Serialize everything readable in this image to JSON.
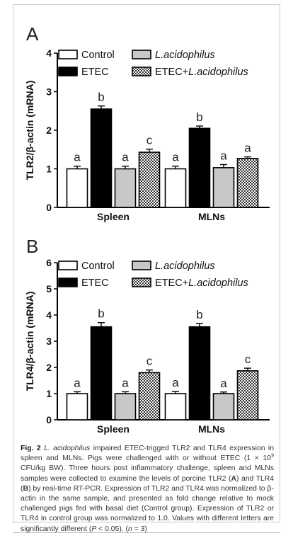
{
  "figure": {
    "caption": {
      "fig_label": "Fig. 2",
      "title_ital": "L. acidophilus",
      "title_rest": "impaired ETEC-trigged TLR2 and TLR4 expression in spleen and MLNs. Pigs were challenged with or without ETEC (1 × 10",
      "exp": "9",
      "p1": "CFU/kg BW). Three hours post inflammatory challenge, spleen and MLNs samples were collected to examine the levels of porcine TLR2 (",
      "a": "A",
      "p2": ") and TLR4 (",
      "b": "B",
      "p3": ") by real-time RT-PCR. Expression of TLR2 and TLR4 was normalized to β-actin in the same sample, and presented as fold change relative to mock challenged pigs fed with basal diet (Control group). Expression of TLR2 or TLR4 in control group was normalized to 1.0. Values with different letters are significantly different (",
      "p_ital": "P",
      "p4": " < 0.05). (",
      "n_ital": "n",
      "p5": " = 3)"
    }
  },
  "chart_data": [
    {
      "type": "bar",
      "panel_label": "A",
      "ylabel": "TLR2/β-actin (mRNA)",
      "ylim": [
        0,
        4
      ],
      "yticks": [
        "0",
        "1",
        "2",
        "3",
        "4"
      ],
      "categories": [
        "Spleen",
        "MLNs"
      ],
      "legend": {
        "placement": "top-left",
        "entries": [
          {
            "text": "Control",
            "ital": "",
            "pattern": "control"
          },
          {
            "text": "",
            "ital": "L.acidophilus",
            "pattern": "lacto"
          },
          {
            "text": "ETEC",
            "ital": "",
            "pattern": "etec"
          },
          {
            "text": "ETEC+",
            "ital": "L.acidophilus",
            "pattern": "combo"
          }
        ]
      },
      "series": [
        {
          "pattern": "control",
          "values": [
            1.0,
            1.0
          ],
          "errors": [
            0.07,
            0.07
          ],
          "letters": [
            "a",
            "a"
          ]
        },
        {
          "pattern": "etec",
          "values": [
            2.55,
            2.05
          ],
          "errors": [
            0.08,
            0.06
          ],
          "letters": [
            "b",
            "b"
          ]
        },
        {
          "pattern": "lacto",
          "values": [
            1.0,
            1.03
          ],
          "errors": [
            0.07,
            0.08
          ],
          "letters": [
            "a",
            "a"
          ]
        },
        {
          "pattern": "combo",
          "values": [
            1.43,
            1.27
          ],
          "errors": [
            0.08,
            0.04
          ],
          "letters": [
            "c",
            "a"
          ]
        }
      ]
    },
    {
      "type": "bar",
      "panel_label": "B",
      "ylabel": "TLR4/β-actin (mRNA)",
      "ylim": [
        0,
        6
      ],
      "yticks": [
        "0",
        "1",
        "2",
        "3",
        "4",
        "5",
        "6"
      ],
      "categories": [
        "Spleen",
        "MLNs"
      ],
      "legend": {
        "placement": "top-left",
        "entries": [
          {
            "text": "Control",
            "ital": "",
            "pattern": "control"
          },
          {
            "text": "",
            "ital": "L.acidophilus",
            "pattern": "lacto"
          },
          {
            "text": "ETEC",
            "ital": "",
            "pattern": "etec"
          },
          {
            "text": "ETEC+",
            "ital": "L.acidophilus",
            "pattern": "combo"
          }
        ]
      },
      "series": [
        {
          "pattern": "control",
          "values": [
            1.0,
            1.0
          ],
          "errors": [
            0.07,
            0.08
          ],
          "letters": [
            "a",
            "a"
          ]
        },
        {
          "pattern": "etec",
          "values": [
            3.55,
            3.55
          ],
          "errors": [
            0.16,
            0.13
          ],
          "letters": [
            "b",
            "b"
          ]
        },
        {
          "pattern": "lacto",
          "values": [
            1.0,
            1.0
          ],
          "errors": [
            0.07,
            0.06
          ],
          "letters": [
            "a",
            "a"
          ]
        },
        {
          "pattern": "combo",
          "values": [
            1.8,
            1.87
          ],
          "errors": [
            0.1,
            0.1
          ],
          "letters": [
            "c",
            "c"
          ]
        }
      ]
    }
  ]
}
